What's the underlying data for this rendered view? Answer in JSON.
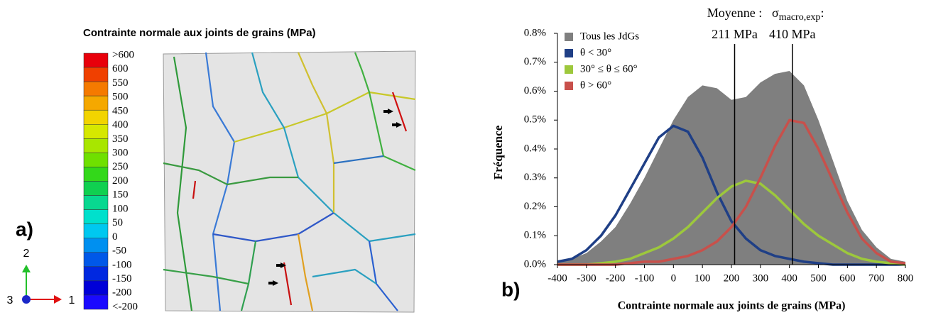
{
  "panel_a": {
    "label": "a)",
    "title": "Contrainte normale aux joints de grains (MPa)",
    "colorbar": {
      "labels": [
        ">600",
        "600",
        "550",
        "500",
        "450",
        "400",
        "350",
        "300",
        "250",
        "200",
        "150",
        "100",
        "50",
        "0",
        "-50",
        "-100",
        "-150",
        "-200",
        "<-200"
      ],
      "colors": [
        "#e8000b",
        "#f04000",
        "#f57a00",
        "#f5a800",
        "#f2d400",
        "#d6e800",
        "#a8e600",
        "#6fe000",
        "#33d81a",
        "#10d050",
        "#08d890",
        "#00e0cc",
        "#00c8f0",
        "#0090f0",
        "#0058e8",
        "#0028e0",
        "#0000d8",
        "#1a0aff"
      ]
    },
    "axes": {
      "up": "2",
      "out": "3",
      "right": "1"
    }
  },
  "chart_data": {
    "type": "line",
    "label": "b)",
    "x_label": "Contrainte normale aux joints de grains (MPa)",
    "y_label": "Fréquence",
    "x": [
      -400,
      -350,
      -300,
      -250,
      -200,
      -150,
      -100,
      -50,
      0,
      50,
      100,
      150,
      200,
      250,
      300,
      350,
      400,
      450,
      500,
      550,
      600,
      650,
      700,
      750,
      800
    ],
    "series": [
      {
        "name": "Tous les JdGs",
        "color": "#7f7f7f",
        "style": "area",
        "values": [
          0.01,
          0.02,
          0.04,
          0.08,
          0.13,
          0.21,
          0.3,
          0.4,
          0.5,
          0.58,
          0.62,
          0.61,
          0.57,
          0.58,
          0.63,
          0.66,
          0.67,
          0.62,
          0.5,
          0.36,
          0.22,
          0.12,
          0.06,
          0.02,
          0.01
        ]
      },
      {
        "name": "θ < 30°",
        "color": "#1f3f86",
        "values": [
          0.01,
          0.02,
          0.05,
          0.1,
          0.17,
          0.26,
          0.35,
          0.44,
          0.48,
          0.46,
          0.37,
          0.25,
          0.15,
          0.09,
          0.05,
          0.03,
          0.02,
          0.01,
          0.005,
          0,
          0,
          0,
          0,
          0,
          0
        ]
      },
      {
        "name": "30° ≤ θ ≤ 60°",
        "color": "#9dc83c",
        "values": [
          0,
          0,
          0,
          0.005,
          0.01,
          0.02,
          0.04,
          0.06,
          0.09,
          0.13,
          0.18,
          0.23,
          0.27,
          0.29,
          0.28,
          0.24,
          0.19,
          0.14,
          0.1,
          0.07,
          0.04,
          0.02,
          0.01,
          0.005,
          0
        ]
      },
      {
        "name": "θ > 60°",
        "color": "#c8504b",
        "values": [
          0,
          0,
          0,
          0,
          0,
          0.005,
          0.01,
          0.01,
          0.02,
          0.03,
          0.05,
          0.08,
          0.13,
          0.2,
          0.3,
          0.41,
          0.5,
          0.49,
          0.4,
          0.29,
          0.18,
          0.09,
          0.04,
          0.01,
          0.005
        ]
      }
    ],
    "xlim": [
      -400,
      800
    ],
    "xticks": [
      -400,
      -300,
      -200,
      -100,
      0,
      100,
      200,
      300,
      400,
      500,
      600,
      700,
      800
    ],
    "ylim": [
      0,
      0.8
    ],
    "yticks": [
      {
        "value": 0,
        "label": "0.0%"
      },
      {
        "value": 0.1,
        "label": "0.1%"
      },
      {
        "value": 0.2,
        "label": "0.2%"
      },
      {
        "value": 0.3,
        "label": "0.3%"
      },
      {
        "value": 0.4,
        "label": "0.4%"
      },
      {
        "value": 0.5,
        "label": "0.5%"
      },
      {
        "value": 0.6,
        "label": "0.6%"
      },
      {
        "value": 0.7,
        "label": "0.7%"
      },
      {
        "value": 0.8,
        "label": "0.8%"
      }
    ],
    "legend": "top-left",
    "annotations": [
      {
        "x": 211,
        "lines": [
          "Moyenne :",
          "211 MPa"
        ]
      },
      {
        "x": 410,
        "symbol": "σ",
        "subscript": "macro,exp",
        "suffix": ":",
        "lines": [
          "410 MPa"
        ]
      }
    ]
  }
}
